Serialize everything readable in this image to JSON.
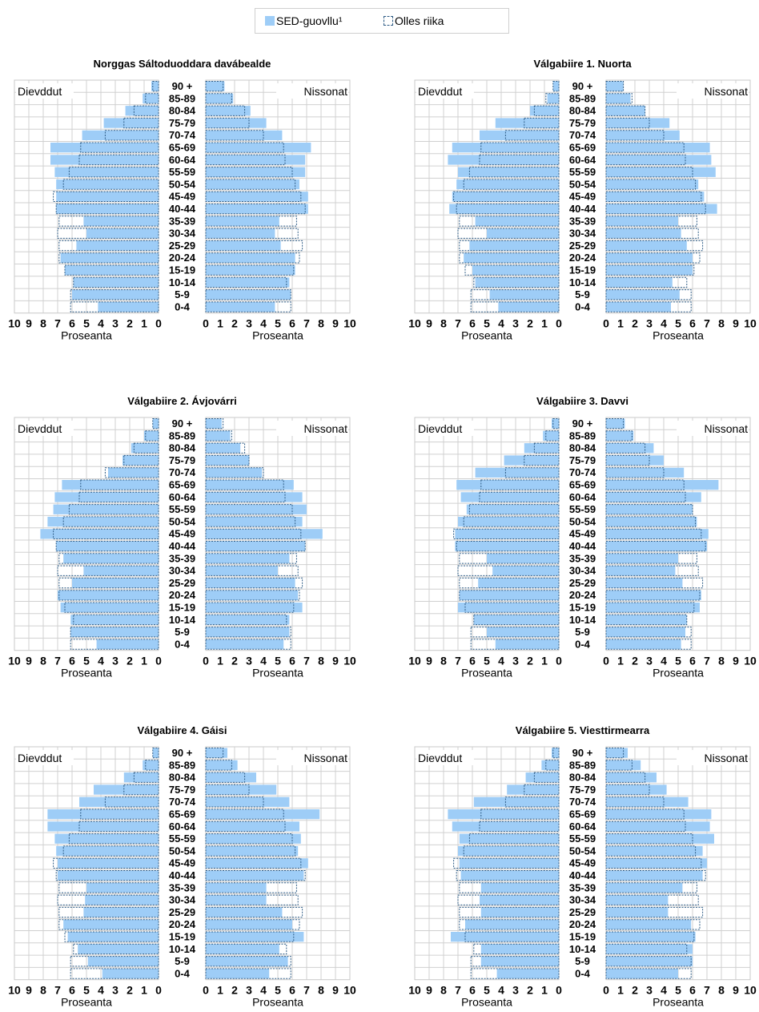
{
  "legend": {
    "sed_label": "SED-guovllu¹",
    "country_label": "Olles riika",
    "sed_color": "#9ecdf7",
    "country_color": "#2e5c86"
  },
  "chart_data": [
    {
      "type": "bar",
      "title": "Norggas Sáltoduoddara davábealde",
      "left_label": "Dievddut",
      "right_label": "Nissonat",
      "xlabel": "Proseanta",
      "xlim": [
        0,
        10
      ],
      "xticks": [
        "0",
        "1",
        "2",
        "3",
        "4",
        "5",
        "6",
        "7",
        "8",
        "9",
        "10"
      ],
      "xticks_left": [
        "10",
        "9",
        "8",
        "7",
        "6",
        "5",
        "4",
        "3",
        "2",
        "1",
        "0"
      ],
      "categories": [
        "90 +",
        "85-89",
        "80-84",
        "75-79",
        "70-74",
        "65-69",
        "60-64",
        "55-59",
        "50-54",
        "45-49",
        "40-44",
        "35-39",
        "30-34",
        "25-29",
        "20-24",
        "15-19",
        "10-14",
        "5-9",
        "0-4"
      ],
      "series": [
        {
          "name": "SED-guovllu¹",
          "side": "male",
          "values": [
            0.5,
            1.1,
            2.3,
            3.8,
            5.3,
            7.5,
            7.5,
            7.2,
            7.1,
            7.1,
            7.1,
            5.2,
            5.0,
            5.7,
            6.8,
            6.5,
            5.9,
            6.0,
            4.2
          ]
        },
        {
          "name": "SED-guovllu¹",
          "side": "female",
          "values": [
            1.3,
            1.9,
            3.1,
            4.2,
            5.3,
            7.3,
            6.9,
            6.9,
            6.5,
            7.1,
            7.1,
            5.1,
            4.8,
            5.2,
            6.2,
            6.2,
            5.8,
            5.9,
            4.8
          ]
        },
        {
          "name": "Olles riika",
          "side": "male",
          "values": [
            0.4,
            0.9,
            1.7,
            2.4,
            3.7,
            5.4,
            5.5,
            6.2,
            6.6,
            7.3,
            7.1,
            6.9,
            7.0,
            6.9,
            6.9,
            6.5,
            5.9,
            6.1,
            6.1
          ]
        },
        {
          "name": "Olles riika",
          "side": "female",
          "values": [
            1.2,
            1.8,
            2.7,
            3.0,
            4.0,
            5.4,
            5.5,
            6.0,
            6.2,
            6.6,
            6.9,
            6.3,
            6.4,
            6.7,
            6.5,
            6.1,
            5.6,
            5.9,
            5.9
          ]
        }
      ]
    },
    {
      "type": "bar",
      "title": "Válgabiire 1. Nuorta",
      "left_label": "Dievddut",
      "right_label": "Nissonat",
      "xlabel": "Proseanta",
      "xlim": [
        0,
        10
      ],
      "xticks": [
        "0",
        "1",
        "2",
        "3",
        "4",
        "5",
        "6",
        "7",
        "8",
        "9",
        "10"
      ],
      "xticks_left": [
        "10",
        "9",
        "8",
        "7",
        "6",
        "5",
        "4",
        "3",
        "2",
        "1",
        "0"
      ],
      "categories": [
        "90 +",
        "85-89",
        "80-84",
        "75-79",
        "70-74",
        "65-69",
        "60-64",
        "55-59",
        "50-54",
        "45-49",
        "40-44",
        "35-39",
        "30-34",
        "25-29",
        "20-24",
        "15-19",
        "10-14",
        "5-9",
        "0-4"
      ],
      "series": [
        {
          "name": "SED-guovllu¹",
          "side": "male",
          "values": [
            0.4,
            0.8,
            2.0,
            4.4,
            5.5,
            7.4,
            7.7,
            7.0,
            7.1,
            7.4,
            7.6,
            5.8,
            5.0,
            6.2,
            6.6,
            6.0,
            5.8,
            4.8,
            4.2
          ]
        },
        {
          "name": "SED-guovllu¹",
          "side": "female",
          "values": [
            1.2,
            1.7,
            2.7,
            4.4,
            5.1,
            7.2,
            7.3,
            7.6,
            6.4,
            6.8,
            7.7,
            5.0,
            5.2,
            5.6,
            6.0,
            6.0,
            4.6,
            5.1,
            4.5
          ]
        },
        {
          "name": "Olles riika",
          "side": "male",
          "values": [
            0.4,
            0.9,
            1.7,
            2.4,
            3.7,
            5.4,
            5.5,
            6.2,
            6.6,
            7.3,
            7.1,
            6.9,
            7.0,
            6.9,
            6.9,
            6.5,
            5.9,
            6.1,
            6.1
          ]
        },
        {
          "name": "Olles riika",
          "side": "female",
          "values": [
            1.2,
            1.8,
            2.7,
            3.0,
            4.0,
            5.4,
            5.5,
            6.0,
            6.2,
            6.6,
            6.9,
            6.3,
            6.4,
            6.7,
            6.5,
            6.1,
            5.6,
            5.9,
            5.9
          ]
        }
      ]
    },
    {
      "type": "bar",
      "title": "Válgabiire 2. Ávjovárri",
      "left_label": "Dievddut",
      "right_label": "Nissonat",
      "xlabel": "Proseanta",
      "xlim": [
        0,
        10
      ],
      "xticks": [
        "0",
        "1",
        "2",
        "3",
        "4",
        "5",
        "6",
        "7",
        "8",
        "9",
        "10"
      ],
      "xticks_left": [
        "10",
        "9",
        "8",
        "7",
        "6",
        "5",
        "4",
        "3",
        "2",
        "1",
        "0"
      ],
      "categories": [
        "90 +",
        "85-89",
        "80-84",
        "75-79",
        "70-74",
        "65-69",
        "60-64",
        "55-59",
        "50-54",
        "45-49",
        "40-44",
        "35-39",
        "30-34",
        "25-29",
        "20-24",
        "15-19",
        "10-14",
        "5-9",
        "0-4"
      ],
      "series": [
        {
          "name": "SED-guovllu¹",
          "side": "male",
          "values": [
            0.4,
            1.0,
            1.9,
            2.5,
            3.5,
            6.7,
            7.2,
            7.3,
            7.7,
            8.2,
            7.1,
            6.6,
            5.2,
            6.0,
            7.0,
            6.8,
            6.1,
            6.1,
            4.3
          ]
        },
        {
          "name": "SED-guovllu¹",
          "side": "female",
          "values": [
            1.1,
            1.7,
            2.4,
            3.0,
            3.9,
            6.1,
            6.7,
            7.0,
            6.7,
            8.1,
            6.9,
            5.8,
            5.0,
            6.2,
            6.4,
            6.7,
            5.8,
            5.8,
            5.4
          ]
        },
        {
          "name": "Olles riika",
          "side": "male",
          "values": [
            0.4,
            0.9,
            1.7,
            2.4,
            3.7,
            5.4,
            5.5,
            6.2,
            6.6,
            7.3,
            7.1,
            6.9,
            7.0,
            6.9,
            6.9,
            6.5,
            5.9,
            6.1,
            6.1
          ]
        },
        {
          "name": "Olles riika",
          "side": "female",
          "values": [
            1.2,
            1.8,
            2.7,
            3.0,
            4.0,
            5.4,
            5.5,
            6.0,
            6.2,
            6.6,
            6.9,
            6.3,
            6.4,
            6.7,
            6.5,
            6.1,
            5.6,
            5.9,
            5.9
          ]
        }
      ]
    },
    {
      "type": "bar",
      "title": "Válgabiire 3. Davvi",
      "left_label": "Dievddut",
      "right_label": "Nissonat",
      "xlabel": "Proseanta",
      "xlim": [
        0,
        10
      ],
      "xticks": [
        "0",
        "1",
        "2",
        "3",
        "4",
        "5",
        "6",
        "7",
        "8",
        "9",
        "10"
      ],
      "xticks_left": [
        "10",
        "9",
        "8",
        "7",
        "6",
        "5",
        "4",
        "3",
        "2",
        "1",
        "0"
      ],
      "categories": [
        "90 +",
        "85-89",
        "80-84",
        "75-79",
        "70-74",
        "65-69",
        "60-64",
        "55-59",
        "50-54",
        "45-49",
        "40-44",
        "35-39",
        "30-34",
        "25-29",
        "20-24",
        "15-19",
        "10-14",
        "5-9",
        "0-4"
      ],
      "series": [
        {
          "name": "SED-guovllu¹",
          "side": "male",
          "values": [
            0.5,
            1.1,
            2.4,
            3.8,
            5.8,
            7.1,
            6.8,
            6.4,
            7.0,
            7.2,
            7.2,
            5.0,
            4.6,
            5.6,
            6.9,
            7.0,
            5.9,
            5.0,
            4.4
          ]
        },
        {
          "name": "SED-guovllu¹",
          "side": "female",
          "values": [
            1.3,
            1.9,
            3.3,
            4.0,
            5.4,
            7.8,
            6.6,
            6.0,
            6.3,
            7.1,
            7.0,
            5.0,
            4.8,
            5.3,
            6.6,
            6.5,
            5.6,
            5.5,
            5.2
          ]
        },
        {
          "name": "Olles riika",
          "side": "male",
          "values": [
            0.4,
            0.9,
            1.7,
            2.4,
            3.7,
            5.4,
            5.5,
            6.2,
            6.6,
            7.3,
            7.1,
            6.9,
            7.0,
            6.9,
            6.9,
            6.5,
            5.9,
            6.1,
            6.1
          ]
        },
        {
          "name": "Olles riika",
          "side": "female",
          "values": [
            1.2,
            1.8,
            2.7,
            3.0,
            4.0,
            5.4,
            5.5,
            6.0,
            6.2,
            6.6,
            6.9,
            6.3,
            6.4,
            6.7,
            6.5,
            6.1,
            5.6,
            5.9,
            5.9
          ]
        }
      ]
    },
    {
      "type": "bar",
      "title": "Válgabiire 4. Gáisi",
      "left_label": "Dievddut",
      "right_label": "Nissonat",
      "xlabel": "Proseanta",
      "xlim": [
        0,
        10
      ],
      "xticks": [
        "0",
        "1",
        "2",
        "3",
        "4",
        "5",
        "6",
        "7",
        "8",
        "9",
        "10"
      ],
      "xticks_left": [
        "10",
        "9",
        "8",
        "7",
        "6",
        "5",
        "4",
        "3",
        "2",
        "1",
        "0"
      ],
      "categories": [
        "90 +",
        "85-89",
        "80-84",
        "75-79",
        "70-74",
        "65-69",
        "60-64",
        "55-59",
        "50-54",
        "45-49",
        "40-44",
        "35-39",
        "30-34",
        "25-29",
        "20-24",
        "15-19",
        "10-14",
        "5-9",
        "0-4"
      ],
      "series": [
        {
          "name": "SED-guovllu¹",
          "side": "male",
          "values": [
            0.4,
            1.1,
            2.4,
            4.5,
            5.5,
            7.7,
            7.7,
            7.2,
            7.1,
            7.0,
            7.0,
            5.0,
            5.1,
            5.2,
            6.6,
            6.3,
            5.6,
            4.9,
            3.9
          ]
        },
        {
          "name": "SED-guovllu¹",
          "side": "female",
          "values": [
            1.5,
            2.2,
            3.5,
            4.9,
            5.8,
            7.9,
            6.5,
            6.6,
            6.4,
            7.1,
            6.8,
            4.2,
            4.2,
            5.3,
            6.0,
            6.8,
            5.1,
            5.7,
            4.4
          ]
        },
        {
          "name": "Olles riika",
          "side": "male",
          "values": [
            0.4,
            0.9,
            1.7,
            2.4,
            3.7,
            5.4,
            5.5,
            6.2,
            6.6,
            7.3,
            7.1,
            6.9,
            7.0,
            6.9,
            6.9,
            6.5,
            5.9,
            6.1,
            6.1
          ]
        },
        {
          "name": "Olles riika",
          "side": "female",
          "values": [
            1.2,
            1.8,
            2.7,
            3.0,
            4.0,
            5.4,
            5.5,
            6.0,
            6.2,
            6.6,
            6.9,
            6.3,
            6.4,
            6.7,
            6.5,
            6.1,
            5.6,
            5.9,
            5.9
          ]
        }
      ]
    },
    {
      "type": "bar",
      "title": "Válgabiire 5. Viesttirmearra",
      "left_label": "Dievddut",
      "right_label": "Nissonat",
      "xlabel": "Proseanta",
      "xlim": [
        0,
        10
      ],
      "xticks": [
        "0",
        "1",
        "2",
        "3",
        "4",
        "5",
        "6",
        "7",
        "8",
        "9",
        "10"
      ],
      "xticks_left": [
        "10",
        "9",
        "8",
        "7",
        "6",
        "5",
        "4",
        "3",
        "2",
        "1",
        "0"
      ],
      "categories": [
        "90 +",
        "85-89",
        "80-84",
        "75-79",
        "70-74",
        "65-69",
        "60-64",
        "55-59",
        "50-54",
        "45-49",
        "40-44",
        "35-39",
        "30-34",
        "25-29",
        "20-24",
        "15-19",
        "10-14",
        "5-9",
        "0-4"
      ],
      "series": [
        {
          "name": "SED-guovllu¹",
          "side": "male",
          "values": [
            0.5,
            1.2,
            2.3,
            3.6,
            5.9,
            7.7,
            7.4,
            6.9,
            7.0,
            6.9,
            6.8,
            5.4,
            5.5,
            5.4,
            6.5,
            7.5,
            5.4,
            5.4,
            4.3
          ]
        },
        {
          "name": "SED-guovllu¹",
          "side": "female",
          "values": [
            1.5,
            2.4,
            3.5,
            4.2,
            5.7,
            7.3,
            7.2,
            7.5,
            6.7,
            7.0,
            6.7,
            5.3,
            4.3,
            4.3,
            5.9,
            6.2,
            6.0,
            6.0,
            5.0
          ]
        },
        {
          "name": "Olles riika",
          "side": "male",
          "values": [
            0.4,
            0.9,
            1.7,
            2.4,
            3.7,
            5.4,
            5.5,
            6.2,
            6.6,
            7.3,
            7.1,
            6.9,
            7.0,
            6.9,
            6.9,
            6.5,
            5.9,
            6.1,
            6.1
          ]
        },
        {
          "name": "Olles riika",
          "side": "female",
          "values": [
            1.2,
            1.8,
            2.7,
            3.0,
            4.0,
            5.4,
            5.5,
            6.0,
            6.2,
            6.6,
            6.9,
            6.3,
            6.4,
            6.7,
            6.5,
            6.1,
            5.6,
            5.9,
            5.9
          ]
        }
      ]
    }
  ]
}
